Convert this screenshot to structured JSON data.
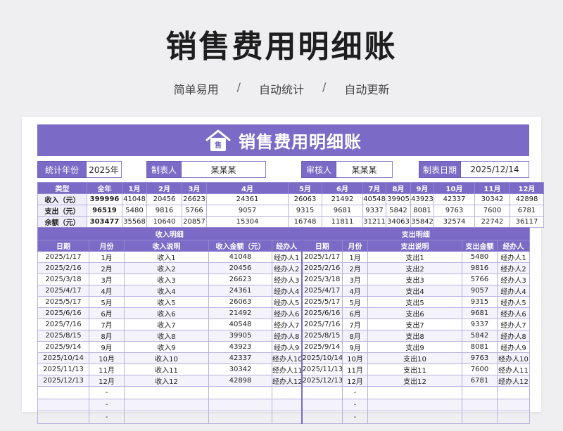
{
  "page": {
    "title": "销售费用明细账",
    "subtitle": [
      "简单易用",
      "自动统计",
      "自动更新"
    ],
    "separator": "/"
  },
  "banner": {
    "title": "销售费用明细账",
    "icon_char": "售",
    "icon": "house-icon"
  },
  "meta": {
    "year_label": "统计年份",
    "year_value": "2025年",
    "maker_label": "制表人",
    "maker_value": "某某某",
    "reviewer_label": "审核人",
    "reviewer_value": "某某某",
    "date_label": "制表日期",
    "date_value": "2025/12/14"
  },
  "summary": {
    "headers": [
      "类型",
      "全年",
      "1月",
      "2月",
      "3月",
      "4月",
      "5月",
      "6月",
      "7月",
      "8月",
      "9月",
      "10月",
      "11月",
      "12月"
    ],
    "rows": [
      [
        "收入（元）",
        "399996",
        "41048",
        "20456",
        "26623",
        "24361",
        "26063",
        "21492",
        "40548",
        "39905",
        "43923",
        "42337",
        "30342",
        "42898"
      ],
      [
        "支出（元）",
        "96519",
        "5480",
        "9816",
        "5766",
        "9057",
        "9315",
        "9681",
        "9337",
        "5842",
        "8081",
        "9763",
        "7600",
        "6781"
      ],
      [
        "余额（元）",
        "303477",
        "35568",
        "10640",
        "20857",
        "15304",
        "16748",
        "11811",
        "31211",
        "34063",
        "35842",
        "32574",
        "22742",
        "36117"
      ]
    ]
  },
  "detail": {
    "income_title": "收入明细",
    "expense_title": "支出明细",
    "income_headers": [
      "日期",
      "月份",
      "收入说明",
      "收入金额（元）",
      "经办人"
    ],
    "expense_headers": [
      "日期",
      "月份",
      "支出说明",
      "支出金额",
      "经办人"
    ],
    "rows": [
      [
        "2025/1/17",
        "1月",
        "收入1",
        "41048",
        "经办人1",
        "2025/1/17",
        "1月",
        "支出1",
        "5480",
        "经办人1"
      ],
      [
        "2025/2/16",
        "2月",
        "收入2",
        "20456",
        "经办人2",
        "2025/2/16",
        "2月",
        "支出2",
        "9816",
        "经办人2"
      ],
      [
        "2025/3/18",
        "3月",
        "收入3",
        "26623",
        "经办人3",
        "2025/3/18",
        "3月",
        "支出3",
        "5766",
        "经办人3"
      ],
      [
        "2025/4/17",
        "4月",
        "收入4",
        "24361",
        "经办人4",
        "2025/4/17",
        "4月",
        "支出4",
        "9057",
        "经办人4"
      ],
      [
        "2025/5/17",
        "5月",
        "收入5",
        "26063",
        "经办人5",
        "2025/5/17",
        "5月",
        "支出5",
        "9315",
        "经办人5"
      ],
      [
        "2025/6/16",
        "6月",
        "收入6",
        "21492",
        "经办人6",
        "2025/6/16",
        "6月",
        "支出6",
        "9681",
        "经办人6"
      ],
      [
        "2025/7/16",
        "7月",
        "收入7",
        "40548",
        "经办人7",
        "2025/7/16",
        "7月",
        "支出7",
        "9337",
        "经办人7"
      ],
      [
        "2025/8/15",
        "8月",
        "收入8",
        "39905",
        "经办人8",
        "2025/8/15",
        "8月",
        "支出8",
        "5842",
        "经办人8"
      ],
      [
        "2025/9/14",
        "9月",
        "收入9",
        "43923",
        "经办人9",
        "2025/9/14",
        "9月",
        "支出9",
        "8081",
        "经办人9"
      ],
      [
        "2025/10/14",
        "10月",
        "收入10",
        "42337",
        "经办人10",
        "2025/10/14",
        "10月",
        "支出10",
        "9763",
        "经办人10"
      ],
      [
        "2025/11/13",
        "11月",
        "收入11",
        "30342",
        "经办人11",
        "2025/11/13",
        "11月",
        "支出11",
        "7600",
        "经办人11"
      ],
      [
        "2025/12/13",
        "12月",
        "收入12",
        "42898",
        "经办人12",
        "2025/12/13",
        "12月",
        "支出12",
        "6781",
        "经办人12"
      ]
    ],
    "blank_rows": [
      [
        "",
        "-",
        "",
        "",
        "",
        "",
        "-",
        "",
        "",
        ""
      ],
      [
        "",
        "-",
        "",
        "",
        "",
        "",
        "-",
        "",
        "",
        ""
      ],
      [
        "",
        "-",
        "",
        "",
        "",
        "",
        "-",
        "",
        "",
        ""
      ]
    ]
  },
  "colors": {
    "accent": "#7b6bc6",
    "row_alt": "#f4f2fb",
    "background": "#efeff2"
  }
}
